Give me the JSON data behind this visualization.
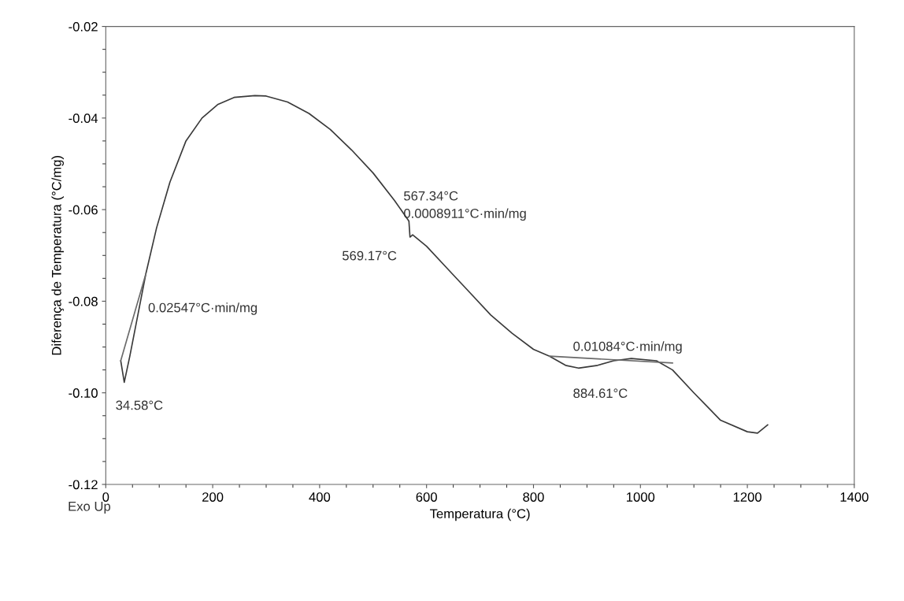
{
  "chart_data": {
    "type": "line",
    "xlabel": "Temperatura (°C)",
    "ylabel": "Diferença de Temperatura (°C/mg)",
    "xlim": [
      0,
      1400
    ],
    "xticks": [
      0,
      200,
      400,
      600,
      800,
      1000,
      1200,
      1400
    ],
    "ylim": [
      -0.12,
      -0.02
    ],
    "yticks": [
      -0.12,
      {
        "value": -0.1,
        "label": "-0.10"
      },
      -0.08,
      -0.06,
      -0.04,
      -0.02
    ],
    "grid": false,
    "legend": false,
    "marker": "none",
    "line_style": "solid",
    "series": [
      {
        "color": "#3a3a3a",
        "x": [
          28,
          34.58,
          45,
          60,
          75,
          95,
          120,
          150,
          180,
          210,
          240,
          279,
          300,
          340,
          380,
          420,
          460,
          500,
          540,
          567,
          569,
          574,
          600,
          640,
          680,
          720,
          760,
          800,
          830,
          860,
          884,
          920,
          950,
          983,
          1030,
          1060,
          1100,
          1150,
          1200,
          1219,
          1238
        ],
        "values": [
          -0.093,
          -0.0977,
          -0.092,
          -0.083,
          -0.074,
          -0.064,
          -0.054,
          -0.045,
          -0.04,
          -0.037,
          -0.0355,
          -0.0351,
          -0.0352,
          -0.0365,
          -0.039,
          -0.0425,
          -0.047,
          -0.052,
          -0.058,
          -0.0625,
          -0.066,
          -0.0655,
          -0.068,
          -0.073,
          -0.078,
          -0.083,
          -0.087,
          -0.0905,
          -0.092,
          -0.094,
          -0.0946,
          -0.094,
          -0.093,
          -0.0925,
          -0.093,
          -0.095,
          -0.1,
          -0.106,
          -0.1085,
          -0.1088,
          -0.107
        ]
      },
      {
        "color": "#6a6a6a",
        "x": [
          830,
          1060
        ],
        "values": [
          -0.092,
          -0.0935
        ]
      },
      {
        "color": "#6a6a6a",
        "x": [
          28,
          75
        ],
        "values": [
          -0.093,
          -0.074
        ]
      }
    ],
    "annotations": [
      {
        "text": "34.58°C",
        "x": 34.58,
        "y": -0.0977
      },
      {
        "text": "0.02547°C·min/mg",
        "x": 75,
        "y": -0.074
      },
      {
        "text": "567.34°C",
        "x": 567,
        "y": -0.0625
      },
      {
        "text": "0.0008911°C·min/mg",
        "x": 567,
        "y": -0.0625
      },
      {
        "text": "569.17°C",
        "x": 569,
        "y": -0.066
      },
      {
        "text": "0.01084°C·min/mg",
        "x": 884,
        "y": -0.092
      },
      {
        "text": "884.61°C",
        "x": 884,
        "y": -0.0946
      },
      "Exo Up"
    ]
  }
}
